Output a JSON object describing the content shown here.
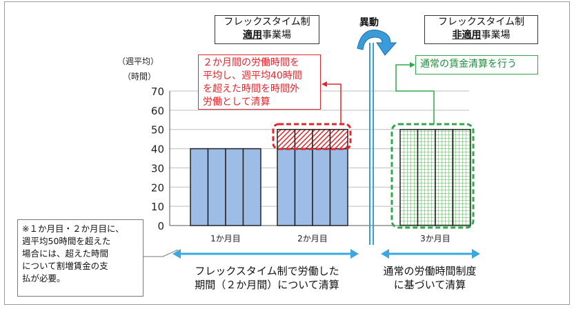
{
  "chart_data": {
    "type": "bar",
    "categories": [
      "1か月目",
      "2か月目",
      "3か月目"
    ],
    "series": [
      {
        "values": [
          40,
          40,
          0
        ]
      },
      {
        "values": [
          0,
          10,
          0
        ]
      },
      {
        "values": [
          0,
          0,
          50
        ]
      }
    ],
    "yticks": [
      0,
      10,
      20,
      30,
      40,
      50,
      60,
      70
    ],
    "ylim": [
      0,
      70
    ],
    "y_unit_line1": "（週平均）",
    "y_unit_line2": "（時間）",
    "colors": {
      "normal": "#9dbde6",
      "overtime_hatch": "#e0262b",
      "nonapplied_grid": "#47b04b"
    }
  },
  "headers": {
    "left_line1": "フレックスタイム制",
    "left_bold": "適用",
    "left_rest": "事業場",
    "right_line1": "フレックスタイム制",
    "right_bold": "非適用",
    "right_rest": "事業場",
    "transfer": "異動"
  },
  "callouts": {
    "red": "２か月間の労働時間を\n平均し、週平均40時間\nを超えた時間を時間外\n労働として清算",
    "green": "通常の賃金清算を行う"
  },
  "note": "※１か月目・２か月目に、\n週平均50時間を超えた\n場合には、超えた時間\nについて割増賃金の支\n払が必要。",
  "bottom": {
    "left": "フレックスタイム制で労働した\n期間（２か月間）について清算",
    "right": "通常の労働時間制度\nに基づいて清算"
  }
}
